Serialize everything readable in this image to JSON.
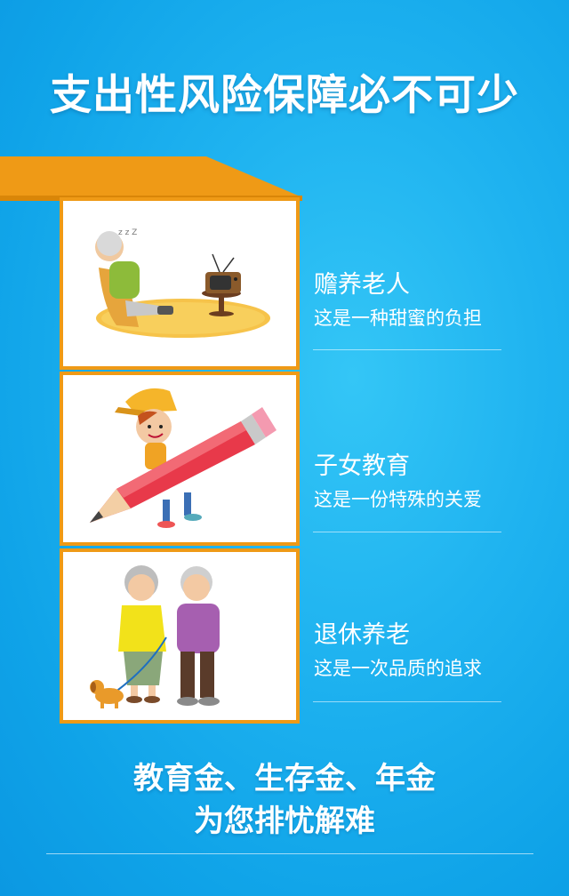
{
  "header": {
    "title": "支出性风险保障必不可少"
  },
  "items": [
    {
      "title": "赡养老人",
      "subtitle": "这是一种甜蜜的负担"
    },
    {
      "title": "子女教育",
      "subtitle": "这是一份特殊的关爱"
    },
    {
      "title": "退休养老",
      "subtitle": "这是一次品质的追求"
    }
  ],
  "footer": {
    "line1": "教育金、生存金、年金",
    "line2": "为您排忧解难"
  },
  "colors": {
    "accent": "#ef9a16",
    "background": "#1fb3f0",
    "text": "#ffffff"
  },
  "illustrations": [
    "elderly-man-with-tv-illustration",
    "child-with-pencil-illustration",
    "elderly-couple-with-dog-illustration"
  ]
}
